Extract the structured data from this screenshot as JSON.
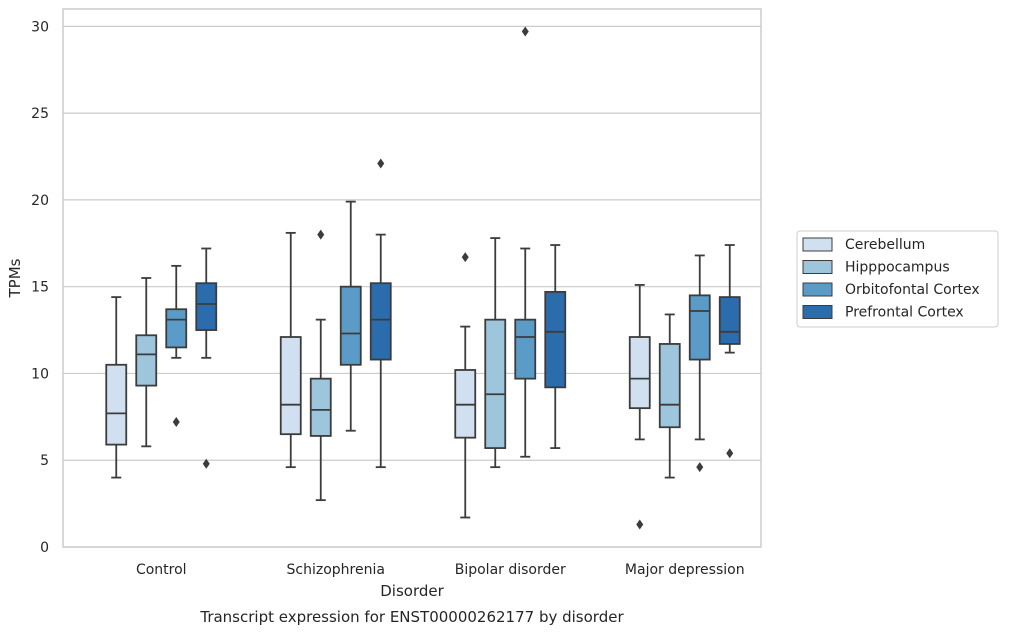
{
  "chart_data": {
    "type": "box",
    "title": "",
    "caption": "Transcript expression for ENST00000262177 by disorder",
    "xlabel": "Disorder",
    "ylabel": "TPMs",
    "ylim": [
      0,
      31
    ],
    "yticks": [
      0,
      5,
      10,
      15,
      20,
      25,
      30
    ],
    "grid": true,
    "legend_position": "right",
    "categories": [
      "Control",
      "Schizophrenia",
      "Bipolar disorder",
      "Major depression"
    ],
    "series": [
      {
        "name": "Cerebellum",
        "color": "#d0e0f0",
        "boxes": [
          {
            "whislo": 4.0,
            "q1": 5.9,
            "med": 7.7,
            "q3": 10.5,
            "whishi": 14.4,
            "fliers": []
          },
          {
            "whislo": 4.6,
            "q1": 6.5,
            "med": 8.2,
            "q3": 12.1,
            "whishi": 18.1,
            "fliers": []
          },
          {
            "whislo": 1.7,
            "q1": 6.3,
            "med": 8.2,
            "q3": 10.2,
            "whishi": 12.7,
            "fliers": [
              16.7
            ]
          },
          {
            "whislo": 6.2,
            "q1": 8.0,
            "med": 9.7,
            "q3": 12.1,
            "whishi": 15.1,
            "fliers": [
              1.3
            ]
          }
        ]
      },
      {
        "name": "Hipppocampus",
        "color": "#9dc5dc",
        "boxes": [
          {
            "whislo": 5.8,
            "q1": 9.3,
            "med": 11.1,
            "q3": 12.2,
            "whishi": 15.5,
            "fliers": []
          },
          {
            "whislo": 2.7,
            "q1": 6.4,
            "med": 7.9,
            "q3": 9.7,
            "whishi": 13.1,
            "fliers": [
              18.0
            ]
          },
          {
            "whislo": 4.6,
            "q1": 5.7,
            "med": 8.8,
            "q3": 13.1,
            "whishi": 17.8,
            "fliers": []
          },
          {
            "whislo": 4.0,
            "q1": 6.9,
            "med": 8.2,
            "q3": 11.7,
            "whishi": 13.4,
            "fliers": []
          }
        ]
      },
      {
        "name": "Orbitofontal Cortex",
        "color": "#5b9bc8",
        "boxes": [
          {
            "whislo": 10.9,
            "q1": 11.5,
            "med": 13.1,
            "q3": 13.7,
            "whishi": 16.2,
            "fliers": [
              7.2
            ]
          },
          {
            "whislo": 6.7,
            "q1": 10.5,
            "med": 12.3,
            "q3": 15.0,
            "whishi": 19.9,
            "fliers": []
          },
          {
            "whislo": 5.2,
            "q1": 9.7,
            "med": 12.1,
            "q3": 13.1,
            "whishi": 17.2,
            "fliers": [
              29.7
            ]
          },
          {
            "whislo": 6.2,
            "q1": 10.8,
            "med": 13.6,
            "q3": 14.5,
            "whishi": 16.8,
            "fliers": [
              4.6
            ]
          }
        ]
      },
      {
        "name": "Prefrontal Cortex",
        "color": "#2a6cac",
        "boxes": [
          {
            "whislo": 10.9,
            "q1": 12.5,
            "med": 14.0,
            "q3": 15.2,
            "whishi": 17.2,
            "fliers": [
              4.8
            ]
          },
          {
            "whislo": 4.6,
            "q1": 10.8,
            "med": 13.1,
            "q3": 15.2,
            "whishi": 18.0,
            "fliers": [
              22.1
            ]
          },
          {
            "whislo": 5.7,
            "q1": 9.2,
            "med": 12.4,
            "q3": 14.7,
            "whishi": 17.4,
            "fliers": []
          },
          {
            "whislo": 11.2,
            "q1": 11.7,
            "med": 12.4,
            "q3": 14.4,
            "whishi": 17.4,
            "fliers": [
              5.4
            ]
          }
        ]
      }
    ]
  }
}
